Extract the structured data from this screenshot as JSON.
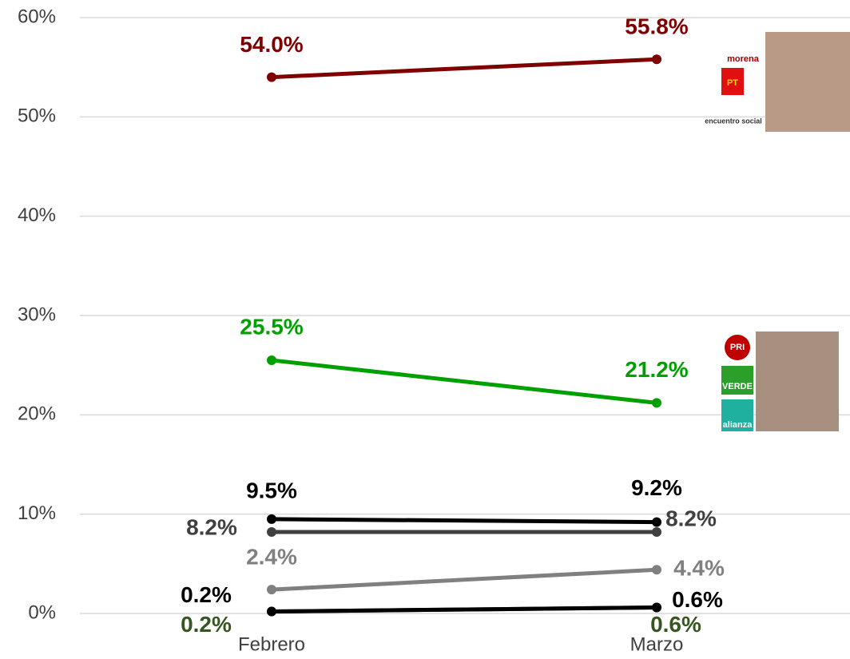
{
  "chart_data": {
    "type": "line",
    "categories": [
      "Febrero",
      "Marzo"
    ],
    "ylim": [
      0,
      60
    ],
    "yticks": [
      {
        "value": 0,
        "label": "0%"
      },
      {
        "value": 10,
        "label": "10%"
      },
      {
        "value": 20,
        "label": "20%"
      },
      {
        "value": 30,
        "label": "30%"
      },
      {
        "value": 40,
        "label": "40%"
      },
      {
        "value": 50,
        "label": "50%"
      },
      {
        "value": 60,
        "label": "60%"
      }
    ],
    "grid": true,
    "series": [
      {
        "color": "#7f0000",
        "values": [
          54.0,
          55.8
        ],
        "value_labels": [
          "54.0%",
          "55.8%"
        ]
      },
      {
        "color": "#00a000",
        "values": [
          25.5,
          21.2
        ],
        "value_labels": [
          "25.5%",
          "21.2%"
        ]
      },
      {
        "color": "#000000",
        "values": [
          9.5,
          9.2
        ],
        "value_labels": [
          "9.5%",
          "9.2%"
        ]
      },
      {
        "color": "#404040",
        "values": [
          8.2,
          8.2
        ],
        "value_labels": [
          "8.2%",
          "8.2%"
        ]
      },
      {
        "color": "#808080",
        "values": [
          2.4,
          4.4
        ],
        "value_labels": [
          "2.4%",
          "4.4%"
        ]
      },
      {
        "color": "#000000",
        "values": [
          0.2,
          0.6
        ],
        "value_labels": [
          "0.2%",
          "0.6%"
        ]
      },
      {
        "color": "#375623",
        "values": [
          0.2,
          0.6
        ],
        "value_labels": [
          "0.2%",
          "0.6%"
        ]
      }
    ],
    "logos": [
      [
        "morena",
        "PT",
        "encuentro social"
      ],
      [
        "PRI",
        "VERDE",
        "alianza"
      ]
    ]
  }
}
